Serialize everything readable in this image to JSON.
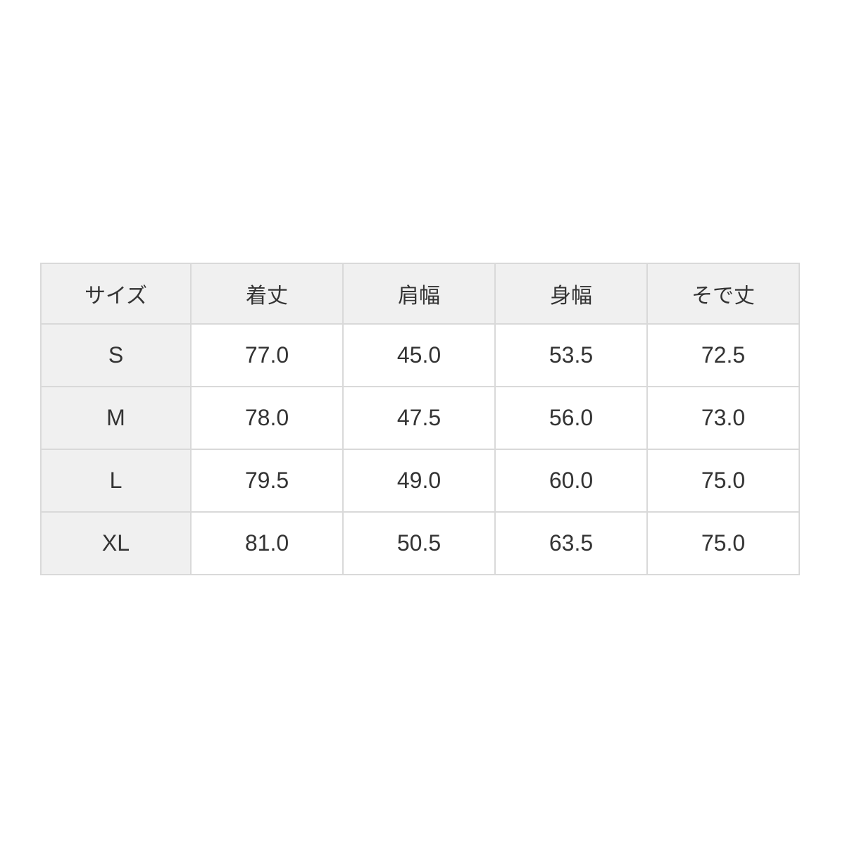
{
  "table": {
    "columns": [
      "サイズ",
      "着丈",
      "肩幅",
      "身幅",
      "そで丈"
    ],
    "rows": [
      {
        "size": "S",
        "values": [
          "77.0",
          "45.0",
          "53.5",
          "72.5"
        ]
      },
      {
        "size": "M",
        "values": [
          "78.0",
          "47.5",
          "56.0",
          "73.0"
        ]
      },
      {
        "size": "L",
        "values": [
          "79.5",
          "49.0",
          "60.0",
          "75.0"
        ]
      },
      {
        "size": "XL",
        "values": [
          "81.0",
          "50.5",
          "63.5",
          "75.0"
        ]
      }
    ],
    "colors": {
      "header_bg": "#f0f0f0",
      "row_label_bg": "#f0f0f0",
      "cell_bg": "#ffffff",
      "border": "#d9d9d9",
      "text": "#333333"
    }
  },
  "chart_data": {
    "type": "table",
    "title": "",
    "columns": [
      "サイズ",
      "着丈",
      "肩幅",
      "身幅",
      "そで丈"
    ],
    "rows": [
      [
        "S",
        77.0,
        45.0,
        53.5,
        72.5
      ],
      [
        "M",
        78.0,
        47.5,
        56.0,
        73.0
      ],
      [
        "L",
        79.5,
        49.0,
        60.0,
        75.0
      ],
      [
        "XL",
        81.0,
        50.5,
        63.5,
        75.0
      ]
    ]
  }
}
